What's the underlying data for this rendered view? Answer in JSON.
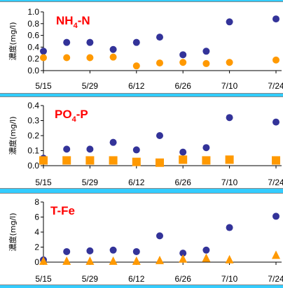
{
  "colors": {
    "background": "#33ccff",
    "panel": "#ffffff",
    "title": "#ff0000",
    "series_a": "#333399",
    "series_b": "#ff9900",
    "axis": "#000000"
  },
  "chart_data": [
    {
      "type": "scatter",
      "title": "NH4-N",
      "title_parts": [
        "NH",
        "4",
        "-N"
      ],
      "ylabel": "濃度(mg/l)",
      "ylim": [
        0,
        1.0
      ],
      "yticks": [
        "0.0",
        "0.2",
        "0.4",
        "0.6",
        "0.8",
        "1.0"
      ],
      "ytick_values": [
        0,
        0.2,
        0.4,
        0.6,
        0.8,
        1.0
      ],
      "xlim": [
        "2001-05-15",
        "2001-07-24"
      ],
      "xticks": [
        "5/15",
        "5/29",
        "6/12",
        "6/26",
        "7/10",
        "7/24"
      ],
      "xtick_dates": [
        "2001-05-15",
        "2001-05-29",
        "2001-06-12",
        "2001-06-26",
        "2001-07-10",
        "2001-07-24"
      ],
      "grid": false,
      "series": [
        {
          "marker": "circle",
          "color": "#333399",
          "points": [
            {
              "x": "2001-05-15",
              "y": 0.33
            },
            {
              "x": "2001-05-22",
              "y": 0.48
            },
            {
              "x": "2001-05-29",
              "y": 0.48
            },
            {
              "x": "2001-06-05",
              "y": 0.36
            },
            {
              "x": "2001-06-12",
              "y": 0.48
            },
            {
              "x": "2001-06-19",
              "y": 0.57
            },
            {
              "x": "2001-06-26",
              "y": 0.27
            },
            {
              "x": "2001-07-03",
              "y": 0.33
            },
            {
              "x": "2001-07-10",
              "y": 0.83
            },
            {
              "x": "2001-07-24",
              "y": 0.88
            }
          ]
        },
        {
          "marker": "circle",
          "color": "#ff9900",
          "points": [
            {
              "x": "2001-05-15",
              "y": 0.22
            },
            {
              "x": "2001-05-22",
              "y": 0.22
            },
            {
              "x": "2001-05-29",
              "y": 0.22
            },
            {
              "x": "2001-06-05",
              "y": 0.23
            },
            {
              "x": "2001-06-12",
              "y": 0.08
            },
            {
              "x": "2001-06-19",
              "y": 0.13
            },
            {
              "x": "2001-06-26",
              "y": 0.14
            },
            {
              "x": "2001-07-03",
              "y": 0.12
            },
            {
              "x": "2001-07-10",
              "y": 0.14
            },
            {
              "x": "2001-07-24",
              "y": 0.18
            }
          ]
        }
      ]
    },
    {
      "type": "scatter",
      "title": "PO4-P",
      "title_parts": [
        "PO",
        "4",
        "-P"
      ],
      "ylabel": "濃度(mg/l)",
      "ylim": [
        0,
        0.4
      ],
      "yticks": [
        "0.0",
        "0.1",
        "0.2",
        "0.3",
        "0.4"
      ],
      "ytick_values": [
        0,
        0.1,
        0.2,
        0.3,
        0.4
      ],
      "xlim": [
        "2001-05-15",
        "2001-07-24"
      ],
      "xticks": [
        "5/15",
        "5/29",
        "6/12",
        "6/26",
        "7/10",
        "7/24"
      ],
      "xtick_dates": [
        "2001-05-15",
        "2001-05-29",
        "2001-06-12",
        "2001-06-26",
        "2001-07-10",
        "2001-07-24"
      ],
      "grid": false,
      "series": [
        {
          "marker": "circle",
          "color": "#333399",
          "points": [
            {
              "x": "2001-05-15",
              "y": 0.05
            },
            {
              "x": "2001-05-22",
              "y": 0.11
            },
            {
              "x": "2001-05-29",
              "y": 0.11
            },
            {
              "x": "2001-06-05",
              "y": 0.155
            },
            {
              "x": "2001-06-12",
              "y": 0.105
            },
            {
              "x": "2001-06-19",
              "y": 0.2
            },
            {
              "x": "2001-06-26",
              "y": 0.09
            },
            {
              "x": "2001-07-03",
              "y": 0.12
            },
            {
              "x": "2001-07-10",
              "y": 0.32
            },
            {
              "x": "2001-07-24",
              "y": 0.29
            }
          ]
        },
        {
          "marker": "square",
          "color": "#ff9900",
          "points": [
            {
              "x": "2001-05-15",
              "y": 0.035
            },
            {
              "x": "2001-05-22",
              "y": 0.035
            },
            {
              "x": "2001-05-29",
              "y": 0.035
            },
            {
              "x": "2001-06-05",
              "y": 0.035
            },
            {
              "x": "2001-06-12",
              "y": 0.025
            },
            {
              "x": "2001-06-19",
              "y": 0.02
            },
            {
              "x": "2001-06-26",
              "y": 0.04
            },
            {
              "x": "2001-07-03",
              "y": 0.035
            },
            {
              "x": "2001-07-10",
              "y": 0.04
            },
            {
              "x": "2001-07-24",
              "y": 0.035
            }
          ]
        }
      ]
    },
    {
      "type": "scatter",
      "title": "T-Fe",
      "title_parts": [
        "T-Fe",
        "",
        ""
      ],
      "ylabel": "濃度(mg/l)",
      "ylim": [
        0,
        8
      ],
      "yticks": [
        "0",
        "2",
        "4",
        "6",
        "8"
      ],
      "ytick_values": [
        0,
        2,
        4,
        6,
        8
      ],
      "xlim": [
        "2001-05-15",
        "2001-07-24"
      ],
      "xticks": [
        "5/15",
        "5/29",
        "6/12",
        "6/26",
        "7/10",
        "7/24"
      ],
      "xtick_dates": [
        "2001-05-15",
        "2001-05-29",
        "2001-06-12",
        "2001-06-26",
        "2001-07-10",
        "2001-07-24"
      ],
      "grid": false,
      "series": [
        {
          "marker": "circle",
          "color": "#333399",
          "points": [
            {
              "x": "2001-05-15",
              "y": 0.3
            },
            {
              "x": "2001-05-22",
              "y": 1.4
            },
            {
              "x": "2001-05-29",
              "y": 1.5
            },
            {
              "x": "2001-06-05",
              "y": 1.6
            },
            {
              "x": "2001-06-12",
              "y": 1.4
            },
            {
              "x": "2001-06-19",
              "y": 3.5
            },
            {
              "x": "2001-06-26",
              "y": 1.2
            },
            {
              "x": "2001-07-03",
              "y": 1.6
            },
            {
              "x": "2001-07-10",
              "y": 4.6
            },
            {
              "x": "2001-07-24",
              "y": 6.1
            }
          ]
        },
        {
          "marker": "triangle",
          "color": "#ff9900",
          "points": [
            {
              "x": "2001-05-15",
              "y": 0.1
            },
            {
              "x": "2001-05-22",
              "y": 0.1
            },
            {
              "x": "2001-05-29",
              "y": 0.1
            },
            {
              "x": "2001-06-05",
              "y": 0.1
            },
            {
              "x": "2001-06-12",
              "y": 0.1
            },
            {
              "x": "2001-06-19",
              "y": 0.2
            },
            {
              "x": "2001-06-26",
              "y": 0.4
            },
            {
              "x": "2001-07-03",
              "y": 0.5
            },
            {
              "x": "2001-07-10",
              "y": 0.3
            },
            {
              "x": "2001-07-24",
              "y": 0.9
            }
          ]
        }
      ]
    }
  ]
}
